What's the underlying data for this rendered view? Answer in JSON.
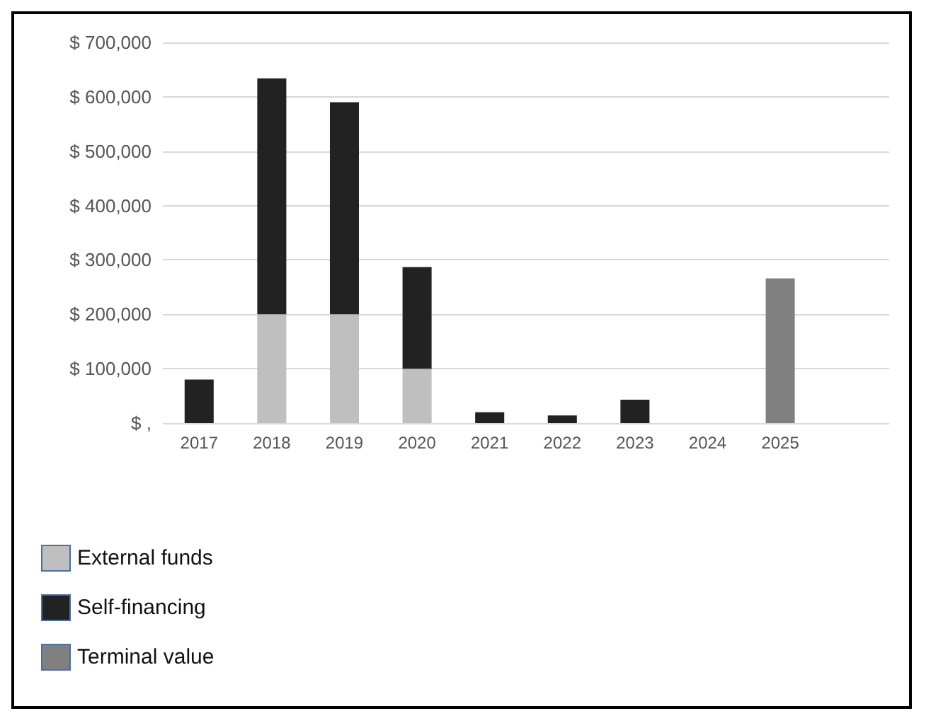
{
  "chart_data": {
    "type": "bar",
    "stacked": true,
    "categories": [
      "2017",
      "2018",
      "2019",
      "2020",
      "2021",
      "2022",
      "2023",
      "2024",
      "2025",
      null
    ],
    "series": [
      {
        "name": "External funds",
        "color": "#bfbfbf",
        "values": [
          0,
          200000,
          200000,
          100000,
          0,
          0,
          0,
          null,
          0,
          null
        ]
      },
      {
        "name": "Self-financing",
        "color": "#222222",
        "values": [
          80000,
          434000,
          390000,
          187000,
          20000,
          14000,
          43000,
          0,
          0,
          null
        ]
      },
      {
        "name": "Terminal value",
        "color": "#808080",
        "values": [
          0,
          0,
          0,
          0,
          0,
          0,
          0,
          0,
          266000,
          null
        ]
      }
    ],
    "ylim": [
      0,
      700000
    ],
    "yticks": [
      {
        "value": 0,
        "label": "$ ,"
      },
      {
        "value": 100000,
        "label": "$ 100,000"
      },
      {
        "value": 200000,
        "label": "$ 200,000"
      },
      {
        "value": 300000,
        "label": "$ 300,000"
      },
      {
        "value": 400000,
        "label": "$ 400,000"
      },
      {
        "value": 500000,
        "label": "$ 500,000"
      },
      {
        "value": 600000,
        "label": "$ 600,000"
      },
      {
        "value": 700000,
        "label": "$ 700,000"
      }
    ],
    "grid": "y",
    "legend": "bottom left"
  }
}
